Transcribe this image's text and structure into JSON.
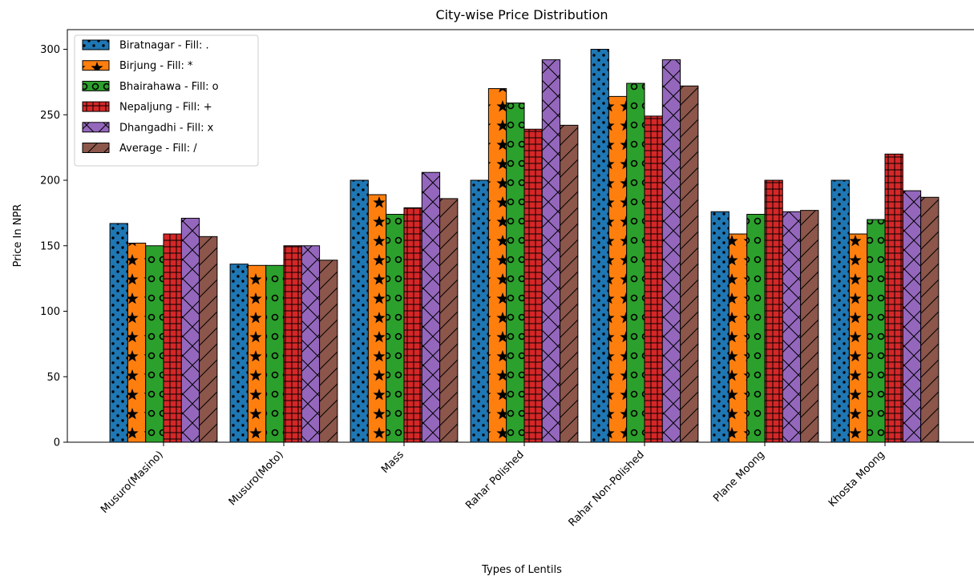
{
  "chart_data": {
    "type": "bar",
    "title": "City-wise Price Distribution",
    "xlabel": "Types of Lentils",
    "ylabel": "Price In NPR",
    "ylim": [
      0,
      315
    ],
    "yticks": [
      0,
      50,
      100,
      150,
      200,
      250,
      300
    ],
    "grid": false,
    "legend_position": "top-left",
    "categories": [
      "Musuro(Masino)",
      "Musuro(Moto)",
      "Mass",
      "Rahar Polished",
      "Rahar Non-Polished",
      "Plane Moong",
      "Khosta Moong"
    ],
    "series": [
      {
        "name": "Biratnagar - Fill: .",
        "color": "#1f77b4",
        "hatch": "dot",
        "values": [
          167,
          136,
          200,
          200,
          300,
          176,
          200
        ]
      },
      {
        "name": "Birjung - Fill: *",
        "color": "#ff7f0e",
        "hatch": "star",
        "values": [
          152,
          135,
          189,
          270,
          264,
          159,
          159
        ]
      },
      {
        "name": "Bhairahawa - Fill: o",
        "color": "#2ca02c",
        "hatch": "circle",
        "values": [
          150,
          135,
          174,
          259,
          274,
          174,
          170
        ]
      },
      {
        "name": "Nepaljung - Fill: +",
        "color": "#d62728",
        "hatch": "plus",
        "values": [
          159,
          150,
          179,
          239,
          249,
          200,
          220
        ]
      },
      {
        "name": "Dhangadhi - Fill: x",
        "color": "#9467bd",
        "hatch": "cross",
        "values": [
          171,
          150,
          206,
          292,
          292,
          176,
          192
        ]
      },
      {
        "name": "Average - Fill: /",
        "color": "#8c564b",
        "hatch": "slash",
        "values": [
          157,
          139,
          186,
          242,
          272,
          177,
          187
        ]
      }
    ]
  }
}
